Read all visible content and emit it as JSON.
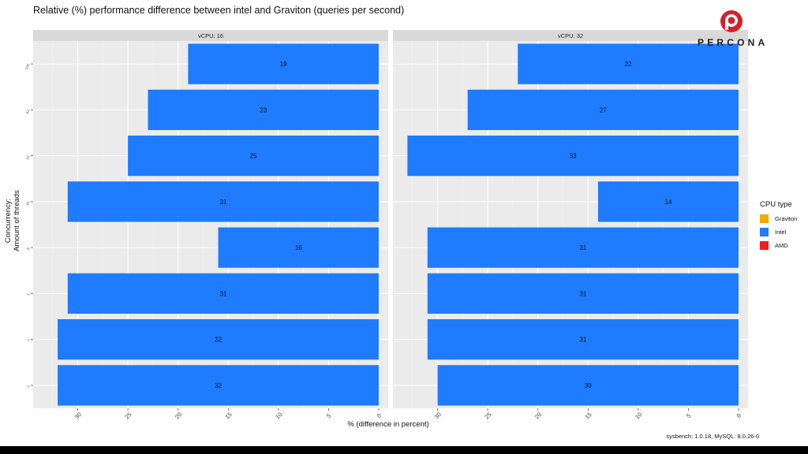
{
  "title": "Relative (%) performance difference between intel and Graviton (queries per second)",
  "caption": "sysbench: 1.0.18, MySQL: 8.0.26-0",
  "logo": {
    "text": "PERCONA",
    "icon": "percona-logo-icon",
    "color": "#d6202a"
  },
  "colors": {
    "panel_bg": "#ebebeb",
    "grid_major": "#ffffff",
    "grid_minor": "#f4f4f4",
    "strip_bg": "#d9d9d9",
    "bar_intel": "#1f7bff",
    "graviton": "#f5a800",
    "amd": "#f21d1d"
  },
  "legend": {
    "title": "CPU type",
    "placement": "right",
    "items": [
      {
        "label": "Graviton",
        "color": "#f5a800"
      },
      {
        "label": "Intel",
        "color": "#1f7bff"
      },
      {
        "label": "AMD",
        "color": "#f21d1d"
      }
    ]
  },
  "chart_data": {
    "type": "bar",
    "orientation": "horizontal",
    "xlabel": "% (difference in percent)",
    "ylabel": "Concurrency:\nAmount of threads",
    "xlim": [
      0,
      33.5
    ],
    "x_reversed": true,
    "xticks": [
      30,
      25,
      20,
      15,
      10,
      5,
      0
    ],
    "grid": true,
    "categories": [
      "1",
      "2",
      "4",
      "8",
      "16",
      "32",
      "64",
      "128"
    ],
    "category_tick_labels": [
      "1",
      "2",
      "4",
      "8",
      "16",
      "32",
      "64",
      "128"
    ],
    "panels": [
      {
        "strip": "vCPU: 16",
        "series": [
          {
            "name": "Intel",
            "values": [
              32,
              32,
              31,
              16,
              31,
              25,
              23,
              19
            ],
            "labels": [
              "32",
              "32",
              "31",
              "16",
              "31",
              "25",
              "23",
              "19"
            ]
          }
        ]
      },
      {
        "strip": "vCPU: 32",
        "series": [
          {
            "name": "Intel",
            "values": [
              30,
              31,
              31,
              31,
              14,
              33,
              27,
              22
            ],
            "labels": [
              "30",
              "31",
              "31",
              "31",
              "14",
              "33",
              "27",
              "22"
            ]
          }
        ]
      }
    ]
  }
}
